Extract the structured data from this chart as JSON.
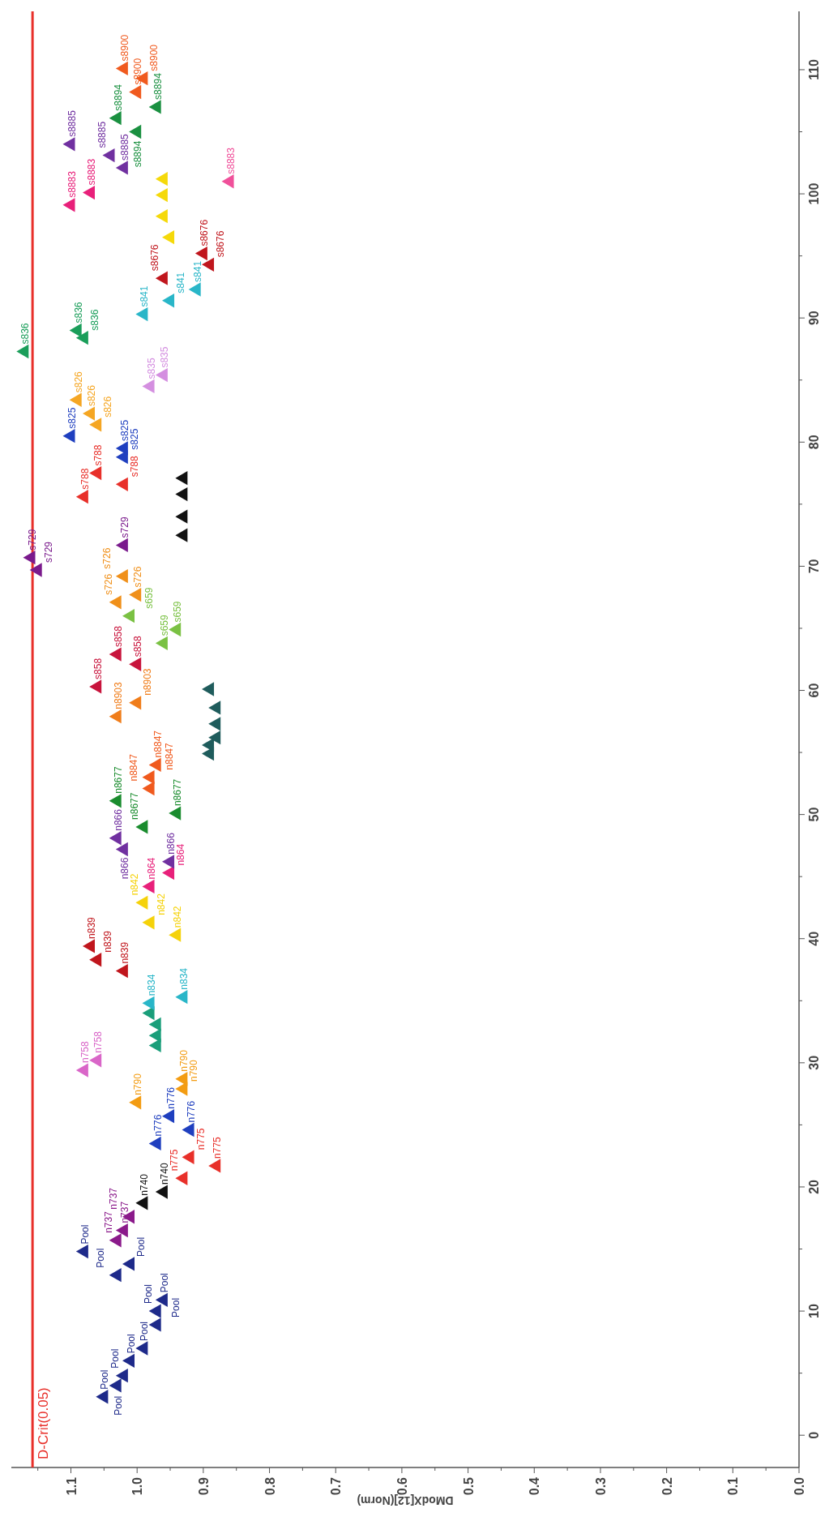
{
  "chart_data": {
    "type": "scatter",
    "xlabel": "DModX[12](Norm)",
    "marker": "triangle",
    "xlim": [
      1.19,
      0
    ],
    "ylim": [
      -2.6,
      114.7
    ],
    "xticks": [
      {
        "value": 0,
        "label": "0.0"
      },
      {
        "value": 0.05,
        "label": null
      },
      0.1,
      {
        "value": 0.15,
        "label": null
      },
      0.2,
      {
        "value": 0.25,
        "label": null
      },
      0.3,
      {
        "value": 0.35,
        "label": null
      },
      0.4,
      {
        "value": 0.45,
        "label": null
      },
      0.5,
      {
        "value": 0.55,
        "label": null
      },
      0.6,
      {
        "value": 0.65,
        "label": null
      },
      0.7,
      {
        "value": 0.75,
        "label": null
      },
      0.8,
      {
        "value": 0.85,
        "label": null
      },
      0.9,
      {
        "value": 0.95,
        "label": null
      },
      {
        "value": 1,
        "label": "1.0"
      },
      {
        "value": 1.05,
        "label": null
      },
      1.1,
      {
        "value": 1.15,
        "label": null
      }
    ],
    "yticks": [
      0,
      {
        "value": 5,
        "label": null
      },
      10,
      {
        "value": 15,
        "label": null
      },
      20,
      {
        "value": 25,
        "label": null
      },
      30,
      {
        "value": 35,
        "label": null
      },
      40,
      {
        "value": 45,
        "label": null
      },
      50,
      {
        "value": 55,
        "label": null
      },
      60,
      {
        "value": 65,
        "label": null
      },
      70,
      {
        "value": 75,
        "label": null
      },
      80,
      {
        "value": 85,
        "label": null
      },
      90,
      {
        "value": 95,
        "label": null
      },
      100,
      {
        "value": 105,
        "label": null
      },
      110
    ],
    "ref_lines": [
      {
        "axis": "x",
        "value": 1.158,
        "label": "D-Crit(0.05)",
        "color": "#e8302a"
      }
    ],
    "series": [
      {
        "color": "#1e2a8a",
        "values": [
          3.1,
          4.0,
          4.8,
          6.0,
          7.0,
          8.9,
          10.0,
          10.9,
          12.9,
          13.8,
          14.8
        ],
        "x": [
          1.05,
          1.03,
          1.02,
          1.01,
          0.99,
          0.97,
          0.97,
          0.96,
          1.03,
          1.01,
          1.08
        ],
        "value_labels": [
          "Pool",
          "Pool",
          "Pool",
          "Pool",
          "Pool",
          "Pool",
          "Pool",
          "Pool",
          "Pool",
          "Pool",
          "Pool"
        ]
      },
      {
        "color": "#8b1a8b",
        "values": [
          15.7,
          16.5,
          17.6
        ],
        "x": [
          1.03,
          1.02,
          1.01
        ],
        "value_labels": [
          "n737",
          "n737",
          "n737"
        ]
      },
      {
        "color": "#111111",
        "values": [
          18.7,
          19.6
        ],
        "x": [
          0.99,
          0.96
        ],
        "value_labels": [
          "n740",
          "n740"
        ]
      },
      {
        "color": "#e8302a",
        "values": [
          20.7,
          21.7,
          22.4
        ],
        "x": [
          0.93,
          0.88,
          0.92
        ],
        "value_labels": [
          "n775",
          "n775",
          "n775"
        ]
      },
      {
        "color": "#1f3fbf",
        "values": [
          23.5,
          24.6,
          25.7
        ],
        "x": [
          0.97,
          0.92,
          0.95
        ],
        "value_labels": [
          "n776",
          "n776",
          "n776"
        ]
      },
      {
        "color": "#f39c12",
        "values": [
          26.8,
          27.9,
          28.7
        ],
        "x": [
          1.0,
          0.93,
          0.93
        ],
        "value_labels": [
          "n790",
          "n790",
          "n790"
        ]
      },
      {
        "color": "#d966c8",
        "values": [
          29.4,
          30.2
        ],
        "x": [
          1.08,
          1.06
        ],
        "value_labels": [
          "n758",
          "n758"
        ]
      },
      {
        "color": "#1a9e7a",
        "values": [
          31.4,
          32.2,
          33.1,
          34.0
        ],
        "x": [
          0.97,
          0.97,
          0.97,
          0.98
        ],
        "value_labels": [
          null,
          null,
          null,
          null
        ]
      },
      {
        "color": "#29b6c8",
        "values": [
          34.8,
          35.3
        ],
        "x": [
          0.98,
          0.93
        ],
        "value_labels": [
          "n834",
          "n834"
        ]
      },
      {
        "color": "#c0161d",
        "values": [
          37.4,
          38.3,
          39.4
        ],
        "x": [
          1.02,
          1.06,
          1.07
        ],
        "value_labels": [
          "n839",
          "n839",
          "n839"
        ]
      },
      {
        "color": "#f5d20a",
        "values": [
          40.3,
          41.3,
          42.9
        ],
        "x": [
          0.94,
          0.98,
          0.99
        ],
        "value_labels": [
          "n842",
          "n842",
          "n842"
        ]
      },
      {
        "color": "#e8207a",
        "values": [
          44.2,
          45.3
        ],
        "x": [
          0.98,
          0.95
        ],
        "value_labels": [
          "n864",
          "n864"
        ]
      },
      {
        "color": "#7030a0",
        "values": [
          46.2,
          47.2,
          48.1
        ],
        "x": [
          0.95,
          1.02,
          1.03
        ],
        "value_labels": [
          "n866",
          "n866",
          "n866"
        ]
      },
      {
        "color": "#1a8c2e",
        "values": [
          49.0,
          50.1,
          51.1
        ],
        "x": [
          0.99,
          0.94,
          1.03
        ],
        "value_labels": [
          "n8677",
          "n8677",
          "n8677"
        ]
      },
      {
        "color": "#f05a1e",
        "values": [
          52.1,
          53.0,
          54.0
        ],
        "x": [
          0.98,
          0.98,
          0.97
        ],
        "value_labels": [
          "n8847",
          "n8847",
          "n8847"
        ]
      },
      {
        "color": "#1f5c5c",
        "values": [
          54.9,
          55.6,
          56.2,
          57.3,
          58.6,
          60.1
        ],
        "x": [
          0.89,
          0.89,
          0.88,
          0.88,
          0.88,
          0.89
        ],
        "value_labels": [
          null,
          null,
          null,
          null,
          null,
          null
        ]
      },
      {
        "color": "#f07d1a",
        "values": [
          57.9,
          59.0
        ],
        "x": [
          1.03,
          1.0
        ],
        "value_labels": [
          "n8903",
          "n8903"
        ]
      },
      {
        "color": "#c8143c",
        "values": [
          60.3,
          62.1,
          62.9
        ],
        "x": [
          1.06,
          1.0,
          1.03
        ],
        "value_labels": [
          "s858",
          "s858",
          "s858"
        ]
      },
      {
        "color": "#7ac143",
        "values": [
          63.8,
          64.9,
          66.0
        ],
        "x": [
          0.96,
          0.94,
          1.01
        ],
        "value_labels": [
          "s659",
          "s659",
          "s659"
        ]
      },
      {
        "color": "#f0901a",
        "values": [
          67.1,
          67.7,
          69.2
        ],
        "x": [
          1.03,
          1.0,
          1.02
        ],
        "value_labels": [
          "s726",
          "s726",
          "s726"
        ]
      },
      {
        "color": "#7a1a8c",
        "values": [
          69.7,
          70.7,
          71.7
        ],
        "x": [
          1.15,
          1.16,
          1.02
        ],
        "value_labels": [
          "s729",
          "s729",
          "s729"
        ]
      },
      {
        "color": "#111111",
        "values": [
          72.5,
          74.0,
          75.8,
          77.1
        ],
        "x": [
          0.93,
          0.93,
          0.93,
          0.93
        ],
        "value_labels": [
          null,
          null,
          null,
          null
        ]
      },
      {
        "color": "#e8302a",
        "values": [
          75.6,
          76.6,
          77.5
        ],
        "x": [
          1.08,
          1.02,
          1.06
        ],
        "value_labels": [
          "s788",
          "s788",
          "s788"
        ]
      },
      {
        "color": "#1f3fbf",
        "values": [
          78.8,
          79.5,
          80.5
        ],
        "x": [
          1.02,
          1.02,
          1.1
        ],
        "value_labels": [
          "s825",
          "s825",
          "s825"
        ]
      },
      {
        "color": "#f5a623",
        "values": [
          81.4,
          82.3,
          83.4
        ],
        "x": [
          1.06,
          1.07,
          1.09
        ],
        "value_labels": [
          "s826",
          "s826",
          "s826"
        ]
      },
      {
        "color": "#d48fe0",
        "values": [
          84.5,
          85.4
        ],
        "x": [
          0.98,
          0.96
        ],
        "value_labels": [
          "s835",
          "s835"
        ]
      },
      {
        "color": "#1a9e5a",
        "values": [
          87.3,
          88.4,
          89.0
        ],
        "x": [
          1.17,
          1.08,
          1.09
        ],
        "value_labels": [
          "s836",
          "s836",
          "s836"
        ]
      },
      {
        "color": "#29b6c8",
        "values": [
          90.3,
          91.4,
          92.3
        ],
        "x": [
          0.99,
          0.95,
          0.91
        ],
        "value_labels": [
          "s841",
          "s841",
          "s841"
        ]
      },
      {
        "color": "#c0161d",
        "values": [
          93.2,
          94.3,
          95.2
        ],
        "x": [
          0.96,
          0.89,
          0.9
        ],
        "value_labels": [
          "s8676",
          "s8676",
          "s8676"
        ]
      },
      {
        "color": "#f5d90a",
        "values": [
          96.5,
          98.2,
          99.9,
          101.2
        ],
        "x": [
          0.95,
          0.96,
          0.96,
          0.96
        ],
        "value_labels": [
          null,
          null,
          null,
          null
        ]
      },
      {
        "color": "#e8207a",
        "values": [
          99.1,
          100.1
        ],
        "x": [
          1.1,
          1.07
        ],
        "value_labels": [
          "s8883",
          "s8883"
        ]
      },
      {
        "color": "#f0509a",
        "values": [
          101.0
        ],
        "x": [
          0.86
        ],
        "value_labels": [
          "s8883"
        ]
      },
      {
        "color": "#7030a0",
        "values": [
          102.1,
          103.1,
          104.0
        ],
        "x": [
          1.02,
          1.04,
          1.1
        ],
        "value_labels": [
          "s8885",
          "s8885",
          "s8885"
        ]
      },
      {
        "color": "#1a9040",
        "values": [
          105.0,
          106.1,
          107.0
        ],
        "x": [
          1.0,
          1.03,
          0.97
        ],
        "value_labels": [
          "s8894",
          "s8894",
          "s8894"
        ]
      },
      {
        "color": "#f05a1e",
        "values": [
          108.2,
          109.3,
          110.1
        ],
        "x": [
          1.0,
          0.99,
          1.02
        ],
        "value_labels": [
          "s8900",
          "s8900",
          "s8900"
        ]
      }
    ]
  }
}
